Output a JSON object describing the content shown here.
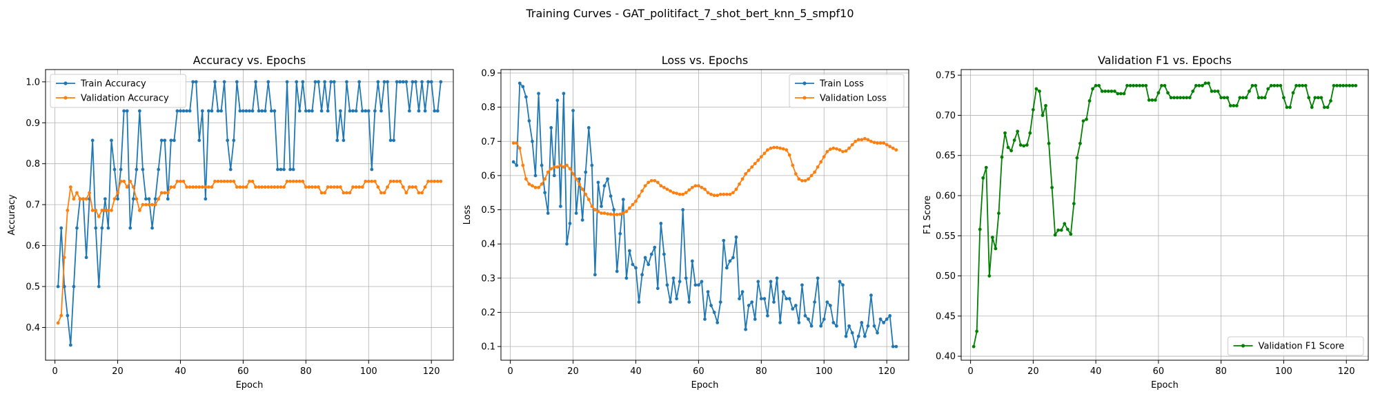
{
  "figure": {
    "title": "Training Curves - GAT_politifact_7_shot_bert_knn_5_smpf10"
  },
  "colors": {
    "blue": "#1f77b4",
    "orange": "#ff7f0e",
    "green": "#008000",
    "grid": "#b0b0b0"
  },
  "chart_data": [
    {
      "type": "line",
      "title": "Accuracy vs. Epochs",
      "xlabel": "Epoch",
      "ylabel": "Accuracy",
      "xlim": [
        -3,
        127
      ],
      "ylim": [
        0.32,
        1.03
      ],
      "xticks": [
        0,
        20,
        40,
        60,
        80,
        100,
        120
      ],
      "yticks": [
        0.4,
        0.5,
        0.6,
        0.7,
        0.8,
        0.9,
        1.0
      ],
      "ytick_decimals": 1,
      "grid": true,
      "legend_position": "top-left",
      "series": [
        {
          "name": "Train Accuracy",
          "color": "#1f77b4",
          "values": [
            0.5,
            0.643,
            0.5,
            0.429,
            0.357,
            0.5,
            0.643,
            0.714,
            0.714,
            0.571,
            0.714,
            0.857,
            0.643,
            0.5,
            0.643,
            0.714,
            0.643,
            0.857,
            0.786,
            0.714,
            0.786,
            0.929,
            0.929,
            0.643,
            0.714,
            0.786,
            0.929,
            0.786,
            0.714,
            0.714,
            0.643,
            0.714,
            0.786,
            0.857,
            0.857,
            0.714,
            0.857,
            0.857,
            0.929,
            0.929,
            0.929,
            0.929,
            0.929,
            1.0,
            1.0,
            0.857,
            0.929,
            0.714,
            0.929,
            0.929,
            1.0,
            0.929,
            0.929,
            1.0,
            0.857,
            0.786,
            0.857,
            1.0,
            0.929,
            0.929,
            0.929,
            0.929,
            0.929,
            1.0,
            0.929,
            0.929,
            0.929,
            1.0,
            0.929,
            0.929,
            0.786,
            0.786,
            0.786,
            1.0,
            0.786,
            0.786,
            1.0,
            0.929,
            1.0,
            0.929,
            0.929,
            0.929,
            1.0,
            1.0,
            0.929,
            1.0,
            0.929,
            1.0,
            1.0,
            0.857,
            0.929,
            0.857,
            1.0,
            0.929,
            0.929,
            0.929,
            1.0,
            0.929,
            0.929,
            0.929,
            0.786,
            0.929,
            1.0,
            0.929,
            1.0,
            1.0,
            0.857,
            0.857,
            1.0,
            1.0,
            1.0,
            1.0,
            0.929,
            1.0,
            1.0,
            0.929,
            1.0,
            0.929,
            1.0,
            1.0,
            0.929,
            0.929,
            1.0
          ]
        },
        {
          "name": "Validation Accuracy",
          "color": "#ff7f0e",
          "values": [
            0.411,
            0.429,
            0.571,
            0.686,
            0.743,
            0.714,
            0.729,
            0.714,
            0.714,
            0.714,
            0.729,
            0.686,
            0.686,
            0.671,
            0.686,
            0.686,
            0.686,
            0.686,
            0.714,
            0.729,
            0.757,
            0.757,
            0.743,
            0.757,
            0.743,
            0.714,
            0.686,
            0.7,
            0.7,
            0.7,
            0.7,
            0.7,
            0.714,
            0.729,
            0.729,
            0.729,
            0.743,
            0.743,
            0.757,
            0.757,
            0.757,
            0.743,
            0.743,
            0.743,
            0.743,
            0.743,
            0.743,
            0.743,
            0.743,
            0.743,
            0.757,
            0.757,
            0.757,
            0.757,
            0.757,
            0.757,
            0.757,
            0.743,
            0.743,
            0.743,
            0.743,
            0.757,
            0.757,
            0.743,
            0.743,
            0.743,
            0.743,
            0.743,
            0.743,
            0.743,
            0.743,
            0.743,
            0.743,
            0.757,
            0.757,
            0.757,
            0.757,
            0.757,
            0.757,
            0.743,
            0.743,
            0.743,
            0.743,
            0.743,
            0.729,
            0.729,
            0.743,
            0.743,
            0.743,
            0.743,
            0.743,
            0.729,
            0.729,
            0.729,
            0.743,
            0.743,
            0.743,
            0.743,
            0.757,
            0.757,
            0.757,
            0.757,
            0.743,
            0.729,
            0.729,
            0.743,
            0.757,
            0.757,
            0.757,
            0.757,
            0.743,
            0.729,
            0.743,
            0.743,
            0.743,
            0.729,
            0.729,
            0.743,
            0.757,
            0.757,
            0.757,
            0.757,
            0.757
          ]
        }
      ]
    },
    {
      "type": "line",
      "title": "Loss vs. Epochs",
      "xlabel": "Epoch",
      "ylabel": "Loss",
      "xlim": [
        -3,
        127
      ],
      "ylim": [
        0.06,
        0.91
      ],
      "xticks": [
        0,
        20,
        40,
        60,
        80,
        100,
        120
      ],
      "yticks": [
        0.1,
        0.2,
        0.3,
        0.4,
        0.5,
        0.6,
        0.7,
        0.8,
        0.9
      ],
      "ytick_decimals": 1,
      "grid": true,
      "legend_position": "top-right",
      "series": [
        {
          "name": "Train Loss",
          "color": "#1f77b4",
          "values": [
            0.64,
            0.63,
            0.87,
            0.86,
            0.83,
            0.76,
            0.7,
            0.6,
            0.84,
            0.63,
            0.55,
            0.49,
            0.74,
            0.6,
            0.82,
            0.51,
            0.84,
            0.4,
            0.46,
            0.79,
            0.49,
            0.59,
            0.47,
            0.61,
            0.74,
            0.63,
            0.31,
            0.58,
            0.51,
            0.57,
            0.59,
            0.54,
            0.5,
            0.32,
            0.43,
            0.53,
            0.3,
            0.38,
            0.34,
            0.33,
            0.23,
            0.31,
            0.36,
            0.34,
            0.37,
            0.39,
            0.27,
            0.46,
            0.37,
            0.28,
            0.23,
            0.3,
            0.24,
            0.29,
            0.5,
            0.3,
            0.23,
            0.35,
            0.28,
            0.28,
            0.29,
            0.18,
            0.26,
            0.22,
            0.2,
            0.17,
            0.23,
            0.41,
            0.33,
            0.35,
            0.36,
            0.42,
            0.24,
            0.26,
            0.15,
            0.22,
            0.23,
            0.18,
            0.29,
            0.24,
            0.24,
            0.19,
            0.29,
            0.23,
            0.3,
            0.17,
            0.26,
            0.24,
            0.24,
            0.21,
            0.22,
            0.17,
            0.28,
            0.19,
            0.18,
            0.16,
            0.23,
            0.3,
            0.16,
            0.18,
            0.23,
            0.22,
            0.17,
            0.16,
            0.29,
            0.28,
            0.13,
            0.16,
            0.14,
            0.1,
            0.13,
            0.17,
            0.13,
            0.16,
            0.25,
            0.16,
            0.14,
            0.18,
            0.17,
            0.18,
            0.19,
            0.1,
            0.1
          ]
        },
        {
          "name": "Validation Loss",
          "color": "#ff7f0e",
          "values": [
            0.695,
            0.695,
            0.68,
            0.63,
            0.59,
            0.575,
            0.57,
            0.565,
            0.565,
            0.575,
            0.59,
            0.61,
            0.62,
            0.625,
            0.625,
            0.63,
            0.625,
            0.63,
            0.62,
            0.605,
            0.59,
            0.575,
            0.56,
            0.545,
            0.53,
            0.51,
            0.5,
            0.495,
            0.49,
            0.49,
            0.488,
            0.487,
            0.486,
            0.486,
            0.487,
            0.49,
            0.495,
            0.505,
            0.515,
            0.525,
            0.54,
            0.555,
            0.57,
            0.58,
            0.585,
            0.585,
            0.58,
            0.57,
            0.565,
            0.56,
            0.555,
            0.55,
            0.548,
            0.545,
            0.545,
            0.55,
            0.558,
            0.565,
            0.57,
            0.57,
            0.565,
            0.56,
            0.55,
            0.545,
            0.542,
            0.542,
            0.545,
            0.545,
            0.545,
            0.545,
            0.55,
            0.56,
            0.575,
            0.59,
            0.605,
            0.615,
            0.625,
            0.635,
            0.645,
            0.655,
            0.665,
            0.675,
            0.68,
            0.682,
            0.682,
            0.68,
            0.678,
            0.675,
            0.66,
            0.63,
            0.605,
            0.59,
            0.585,
            0.585,
            0.59,
            0.6,
            0.61,
            0.625,
            0.64,
            0.655,
            0.67,
            0.677,
            0.68,
            0.678,
            0.675,
            0.67,
            0.672,
            0.68,
            0.69,
            0.7,
            0.705,
            0.705,
            0.708,
            0.705,
            0.7,
            0.697,
            0.695,
            0.695,
            0.695,
            0.69,
            0.685,
            0.68,
            0.675
          ]
        }
      ]
    },
    {
      "type": "line",
      "title": "Validation F1 vs. Epochs",
      "xlabel": "Epoch",
      "ylabel": "F1 Score",
      "xlim": [
        -3,
        127
      ],
      "ylim": [
        0.395,
        0.757
      ],
      "xticks": [
        0,
        20,
        40,
        60,
        80,
        100,
        120
      ],
      "yticks": [
        0.4,
        0.45,
        0.5,
        0.55,
        0.6,
        0.65,
        0.7,
        0.75
      ],
      "ytick_decimals": 2,
      "grid": true,
      "legend_position": "bottom-right",
      "series": [
        {
          "name": "Validation F1 Score",
          "color": "#008000",
          "values": [
            0.412,
            0.431,
            0.558,
            0.622,
            0.635,
            0.5,
            0.548,
            0.534,
            0.578,
            0.648,
            0.678,
            0.66,
            0.656,
            0.669,
            0.68,
            0.663,
            0.662,
            0.663,
            0.678,
            0.707,
            0.733,
            0.73,
            0.7,
            0.712,
            0.665,
            0.61,
            0.551,
            0.557,
            0.557,
            0.565,
            0.558,
            0.552,
            0.59,
            0.647,
            0.665,
            0.693,
            0.695,
            0.718,
            0.733,
            0.737,
            0.737,
            0.73,
            0.73,
            0.73,
            0.73,
            0.73,
            0.727,
            0.727,
            0.727,
            0.737,
            0.737,
            0.737,
            0.737,
            0.737,
            0.737,
            0.737,
            0.719,
            0.719,
            0.719,
            0.728,
            0.737,
            0.737,
            0.728,
            0.722,
            0.722,
            0.722,
            0.722,
            0.722,
            0.722,
            0.722,
            0.73,
            0.737,
            0.737,
            0.737,
            0.74,
            0.74,
            0.73,
            0.73,
            0.73,
            0.722,
            0.722,
            0.722,
            0.712,
            0.712,
            0.712,
            0.722,
            0.722,
            0.722,
            0.73,
            0.737,
            0.737,
            0.722,
            0.722,
            0.722,
            0.733,
            0.737,
            0.737,
            0.737,
            0.737,
            0.722,
            0.71,
            0.71,
            0.728,
            0.737,
            0.737,
            0.737,
            0.737,
            0.722,
            0.71,
            0.722,
            0.722,
            0.722,
            0.71,
            0.71,
            0.718,
            0.737,
            0.737,
            0.737,
            0.737,
            0.737,
            0.737,
            0.737,
            0.737
          ]
        }
      ]
    }
  ]
}
